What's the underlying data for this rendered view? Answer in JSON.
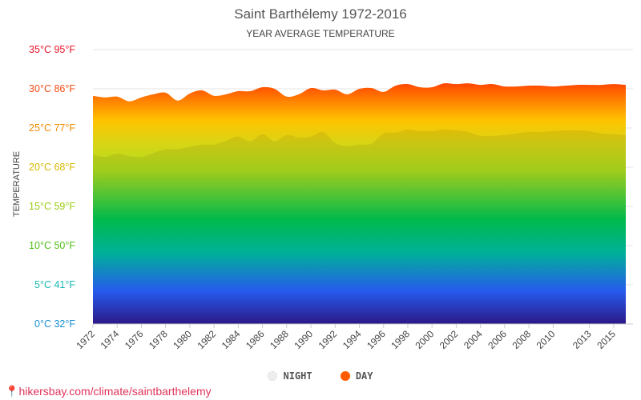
{
  "chart_data": {
    "type": "area",
    "title": "Saint Barthélemy 1972-2016",
    "subtitle": "YEAR AVERAGE TEMPERATURE",
    "ylabel": "TEMPERATURE",
    "xlabel": "",
    "ylim": [
      0,
      35
    ],
    "y_ticks": [
      {
        "value": 0,
        "label": "0°C 32°F",
        "color": "#1a8fd0"
      },
      {
        "value": 5,
        "label": "5°C 41°F",
        "color": "#19b8b0"
      },
      {
        "value": 10,
        "label": "10°C 50°F",
        "color": "#52c01b"
      },
      {
        "value": 15,
        "label": "15°C 59°F",
        "color": "#9ccc11"
      },
      {
        "value": 20,
        "label": "20°C 68°F",
        "color": "#d7b800"
      },
      {
        "value": 25,
        "label": "25°C 77°F",
        "color": "#f08a00"
      },
      {
        "value": 30,
        "label": "30°C 86°F",
        "color": "#f04e16"
      },
      {
        "value": 35,
        "label": "35°C 95°F",
        "color": "#e8142c"
      }
    ],
    "x_tick_labels": [
      "1972",
      "1974",
      "1976",
      "1978",
      "1980",
      "1982",
      "1984",
      "1986",
      "1988",
      "1990",
      "1992",
      "1994",
      "1996",
      "1998",
      "2000",
      "2002",
      "2004",
      "2006",
      "2008",
      "2010",
      "2013",
      "2015"
    ],
    "x": [
      1972,
      1973,
      1974,
      1975,
      1976,
      1977,
      1978,
      1979,
      1980,
      1981,
      1982,
      1983,
      1984,
      1985,
      1986,
      1987,
      1988,
      1989,
      1990,
      1991,
      1992,
      1993,
      1994,
      1995,
      1996,
      1997,
      1998,
      1999,
      2000,
      2001,
      2002,
      2003,
      2004,
      2005,
      2006,
      2007,
      2008,
      2009,
      2010,
      2011,
      2012,
      2013,
      2014,
      2015,
      2016
    ],
    "series": [
      {
        "name": "NIGHT",
        "color": "#eeeeee",
        "values": [
          21.6,
          21.3,
          21.7,
          21.4,
          21.3,
          21.8,
          22.3,
          22.3,
          22.6,
          22.9,
          22.9,
          23.4,
          23.9,
          23.3,
          24.2,
          23.3,
          24.1,
          23.8,
          23.9,
          24.5,
          23.1,
          22.7,
          22.9,
          23.0,
          24.3,
          24.4,
          24.8,
          24.6,
          24.6,
          24.8,
          24.7,
          24.5,
          24.0,
          24.0,
          24.1,
          24.3,
          24.5,
          24.5,
          24.6,
          24.7,
          24.7,
          24.6,
          24.3,
          24.2,
          24.1
        ]
      },
      {
        "name": "DAY",
        "color": "#ff5a00",
        "values": [
          29.1,
          28.9,
          29.0,
          28.4,
          28.9,
          29.3,
          29.5,
          28.5,
          29.4,
          29.8,
          29.1,
          29.3,
          29.7,
          29.7,
          30.2,
          30.0,
          29.0,
          29.3,
          30.1,
          29.8,
          29.9,
          29.3,
          30.0,
          30.1,
          29.6,
          30.4,
          30.6,
          30.2,
          30.2,
          30.7,
          30.6,
          30.7,
          30.5,
          30.6,
          30.3,
          30.3,
          30.4,
          30.4,
          30.3,
          30.4,
          30.5,
          30.5,
          30.5,
          30.6,
          30.5
        ]
      }
    ],
    "grid": true,
    "legend_position": "bottom-center"
  },
  "source_text": "hikersbay.com/climate/saintbarthelemy",
  "colors": {
    "gradient_top": "#ff1744",
    "gradient_orange": "#ff6d00",
    "gradient_yellow": "#ffc400",
    "gradient_lime": "#c6e01a",
    "gradient_green": "#00c853",
    "gradient_teal": "#00bfa5",
    "gradient_blue": "#2962ff",
    "gradient_bottom": "#311b92",
    "source_pin": "#e53935"
  }
}
